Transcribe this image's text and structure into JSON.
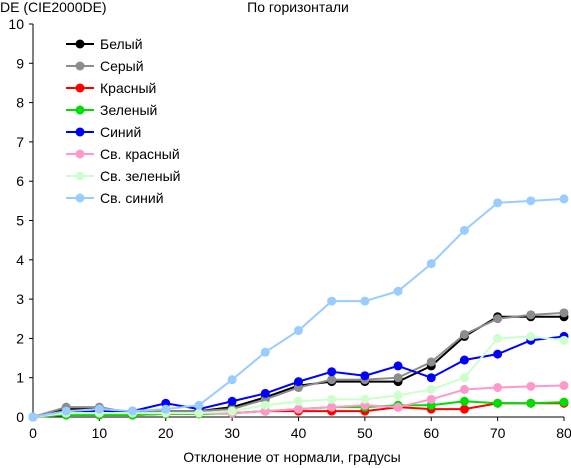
{
  "chart_data": {
    "type": "line",
    "title": "По горизонтали",
    "ylabel": "DE (CIE2000DE)",
    "xlabel": "Отклонение от нормали, градусы",
    "xlim": [
      0,
      80
    ],
    "ylim": [
      0,
      10
    ],
    "xticks": [
      "0",
      "10",
      "20",
      "30",
      "40",
      "50",
      "60",
      "70",
      "80"
    ],
    "yticks": [
      "0",
      "1",
      "2",
      "3",
      "4",
      "5",
      "6",
      "7",
      "8",
      "9",
      "10"
    ],
    "x": [
      0,
      5,
      10,
      15,
      20,
      25,
      30,
      35,
      40,
      45,
      50,
      55,
      60,
      65,
      70,
      75,
      80
    ],
    "legend_position": "top-left",
    "grid": false,
    "series": [
      {
        "name": "Белый",
        "color": "#000000",
        "values": [
          0,
          0.2,
          0.2,
          0.1,
          0.15,
          0.15,
          0.25,
          0.5,
          0.8,
          0.9,
          0.9,
          0.9,
          1.3,
          2.05,
          2.55,
          2.55,
          2.55
        ]
      },
      {
        "name": "Серый",
        "color": "#8c8c8c",
        "values": [
          0,
          0.25,
          0.25,
          0.1,
          0.15,
          0.15,
          0.2,
          0.45,
          0.75,
          0.95,
          0.95,
          1.0,
          1.4,
          2.1,
          2.5,
          2.6,
          2.65
        ]
      },
      {
        "name": "Красный",
        "color": "#ff0000",
        "values": [
          0,
          0.05,
          0.05,
          0.05,
          0.08,
          0.08,
          0.1,
          0.15,
          0.15,
          0.15,
          0.15,
          0.25,
          0.2,
          0.2,
          0.35,
          0.35,
          0.35
        ]
      },
      {
        "name": "Зеленый",
        "color": "#00dd00",
        "values": [
          0,
          0.05,
          0.05,
          0.05,
          0.08,
          0.08,
          0.1,
          0.15,
          0.2,
          0.25,
          0.25,
          0.3,
          0.3,
          0.4,
          0.35,
          0.35,
          0.38
        ]
      },
      {
        "name": "Синий",
        "color": "#0000ff",
        "values": [
          0,
          0.1,
          0.15,
          0.15,
          0.35,
          0.2,
          0.4,
          0.6,
          0.9,
          1.15,
          1.05,
          1.3,
          1.0,
          1.45,
          1.6,
          1.95,
          2.05
        ]
      },
      {
        "name": "Св. красный",
        "color": "#ff99cc",
        "values": [
          0,
          0.1,
          0.1,
          0.1,
          0.1,
          0.1,
          0.1,
          0.15,
          0.2,
          0.25,
          0.3,
          0.25,
          0.45,
          0.7,
          0.75,
          0.78,
          0.8
        ]
      },
      {
        "name": "Св. зеленый",
        "color": "#ccffcc",
        "values": [
          0,
          0.1,
          0.1,
          0.1,
          0.1,
          0.1,
          0.15,
          0.3,
          0.4,
          0.45,
          0.45,
          0.55,
          0.7,
          1.0,
          2.0,
          2.05,
          1.95
        ]
      },
      {
        "name": "Св. синий",
        "color": "#99ccff",
        "values": [
          0,
          0.15,
          0.2,
          0.15,
          0.2,
          0.3,
          0.95,
          1.65,
          2.2,
          2.95,
          2.95,
          3.2,
          3.9,
          4.75,
          5.45,
          5.5,
          5.55
        ]
      }
    ]
  }
}
